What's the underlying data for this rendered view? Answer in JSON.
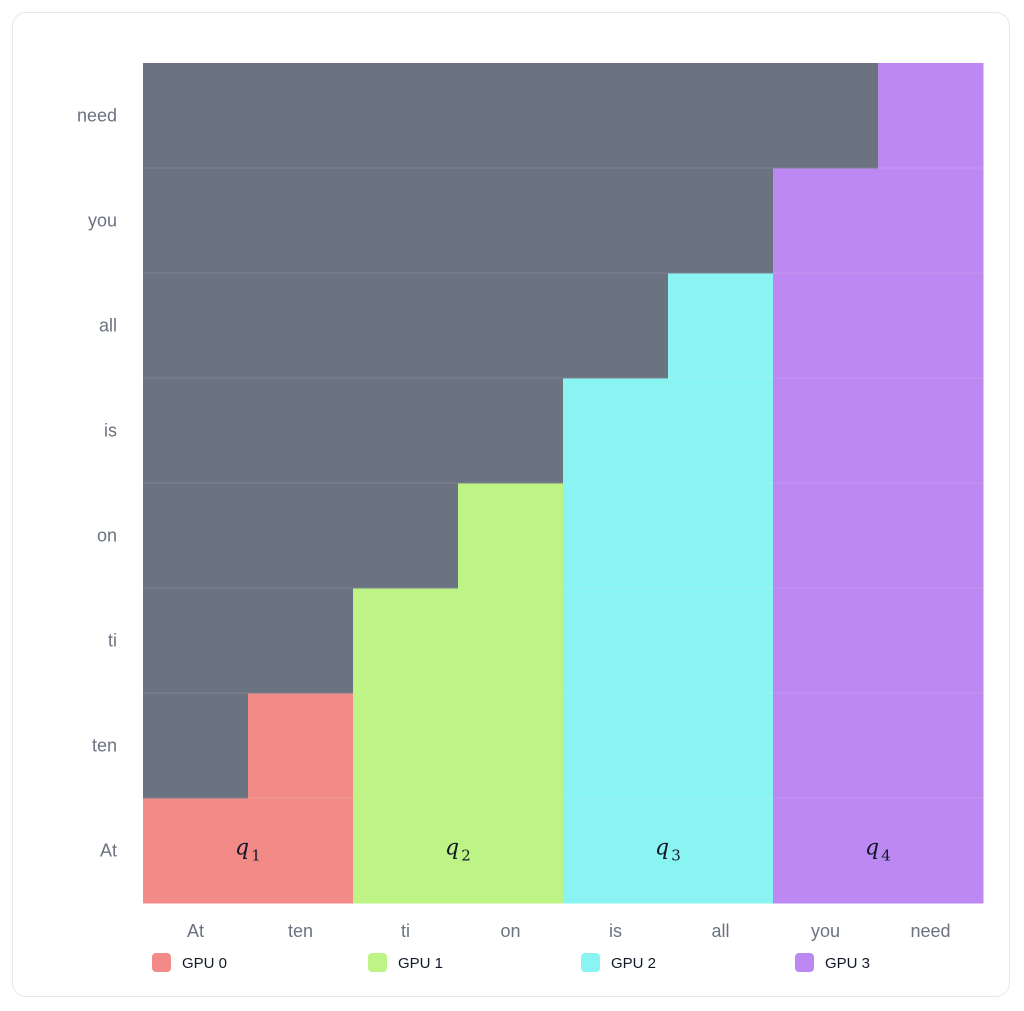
{
  "chart_data": {
    "type": "heatmap",
    "x_categories": [
      "At",
      "ten",
      "ti",
      "on",
      "is",
      "all",
      "you",
      "need"
    ],
    "y_categories": [
      "At",
      "ten",
      "ti",
      "on",
      "is",
      "all",
      "you",
      "need"
    ],
    "masked_color": "#6b7280",
    "groups": [
      {
        "name": "GPU 0",
        "color": "#f28b87",
        "columns": [
          0,
          1
        ],
        "label": "q",
        "label_sub": "1"
      },
      {
        "name": "GPU 1",
        "color": "#bef386",
        "columns": [
          2,
          3
        ],
        "label": "q",
        "label_sub": "2"
      },
      {
        "name": "GPU 2",
        "color": "#8af4f2",
        "columns": [
          4,
          5
        ],
        "label": "q",
        "label_sub": "3"
      },
      {
        "name": "GPU 3",
        "color": "#bc88f2",
        "columns": [
          6,
          7
        ],
        "label": "q",
        "label_sub": "4"
      }
    ],
    "mask": "causal",
    "legend_position": "bottom",
    "grid": true
  }
}
